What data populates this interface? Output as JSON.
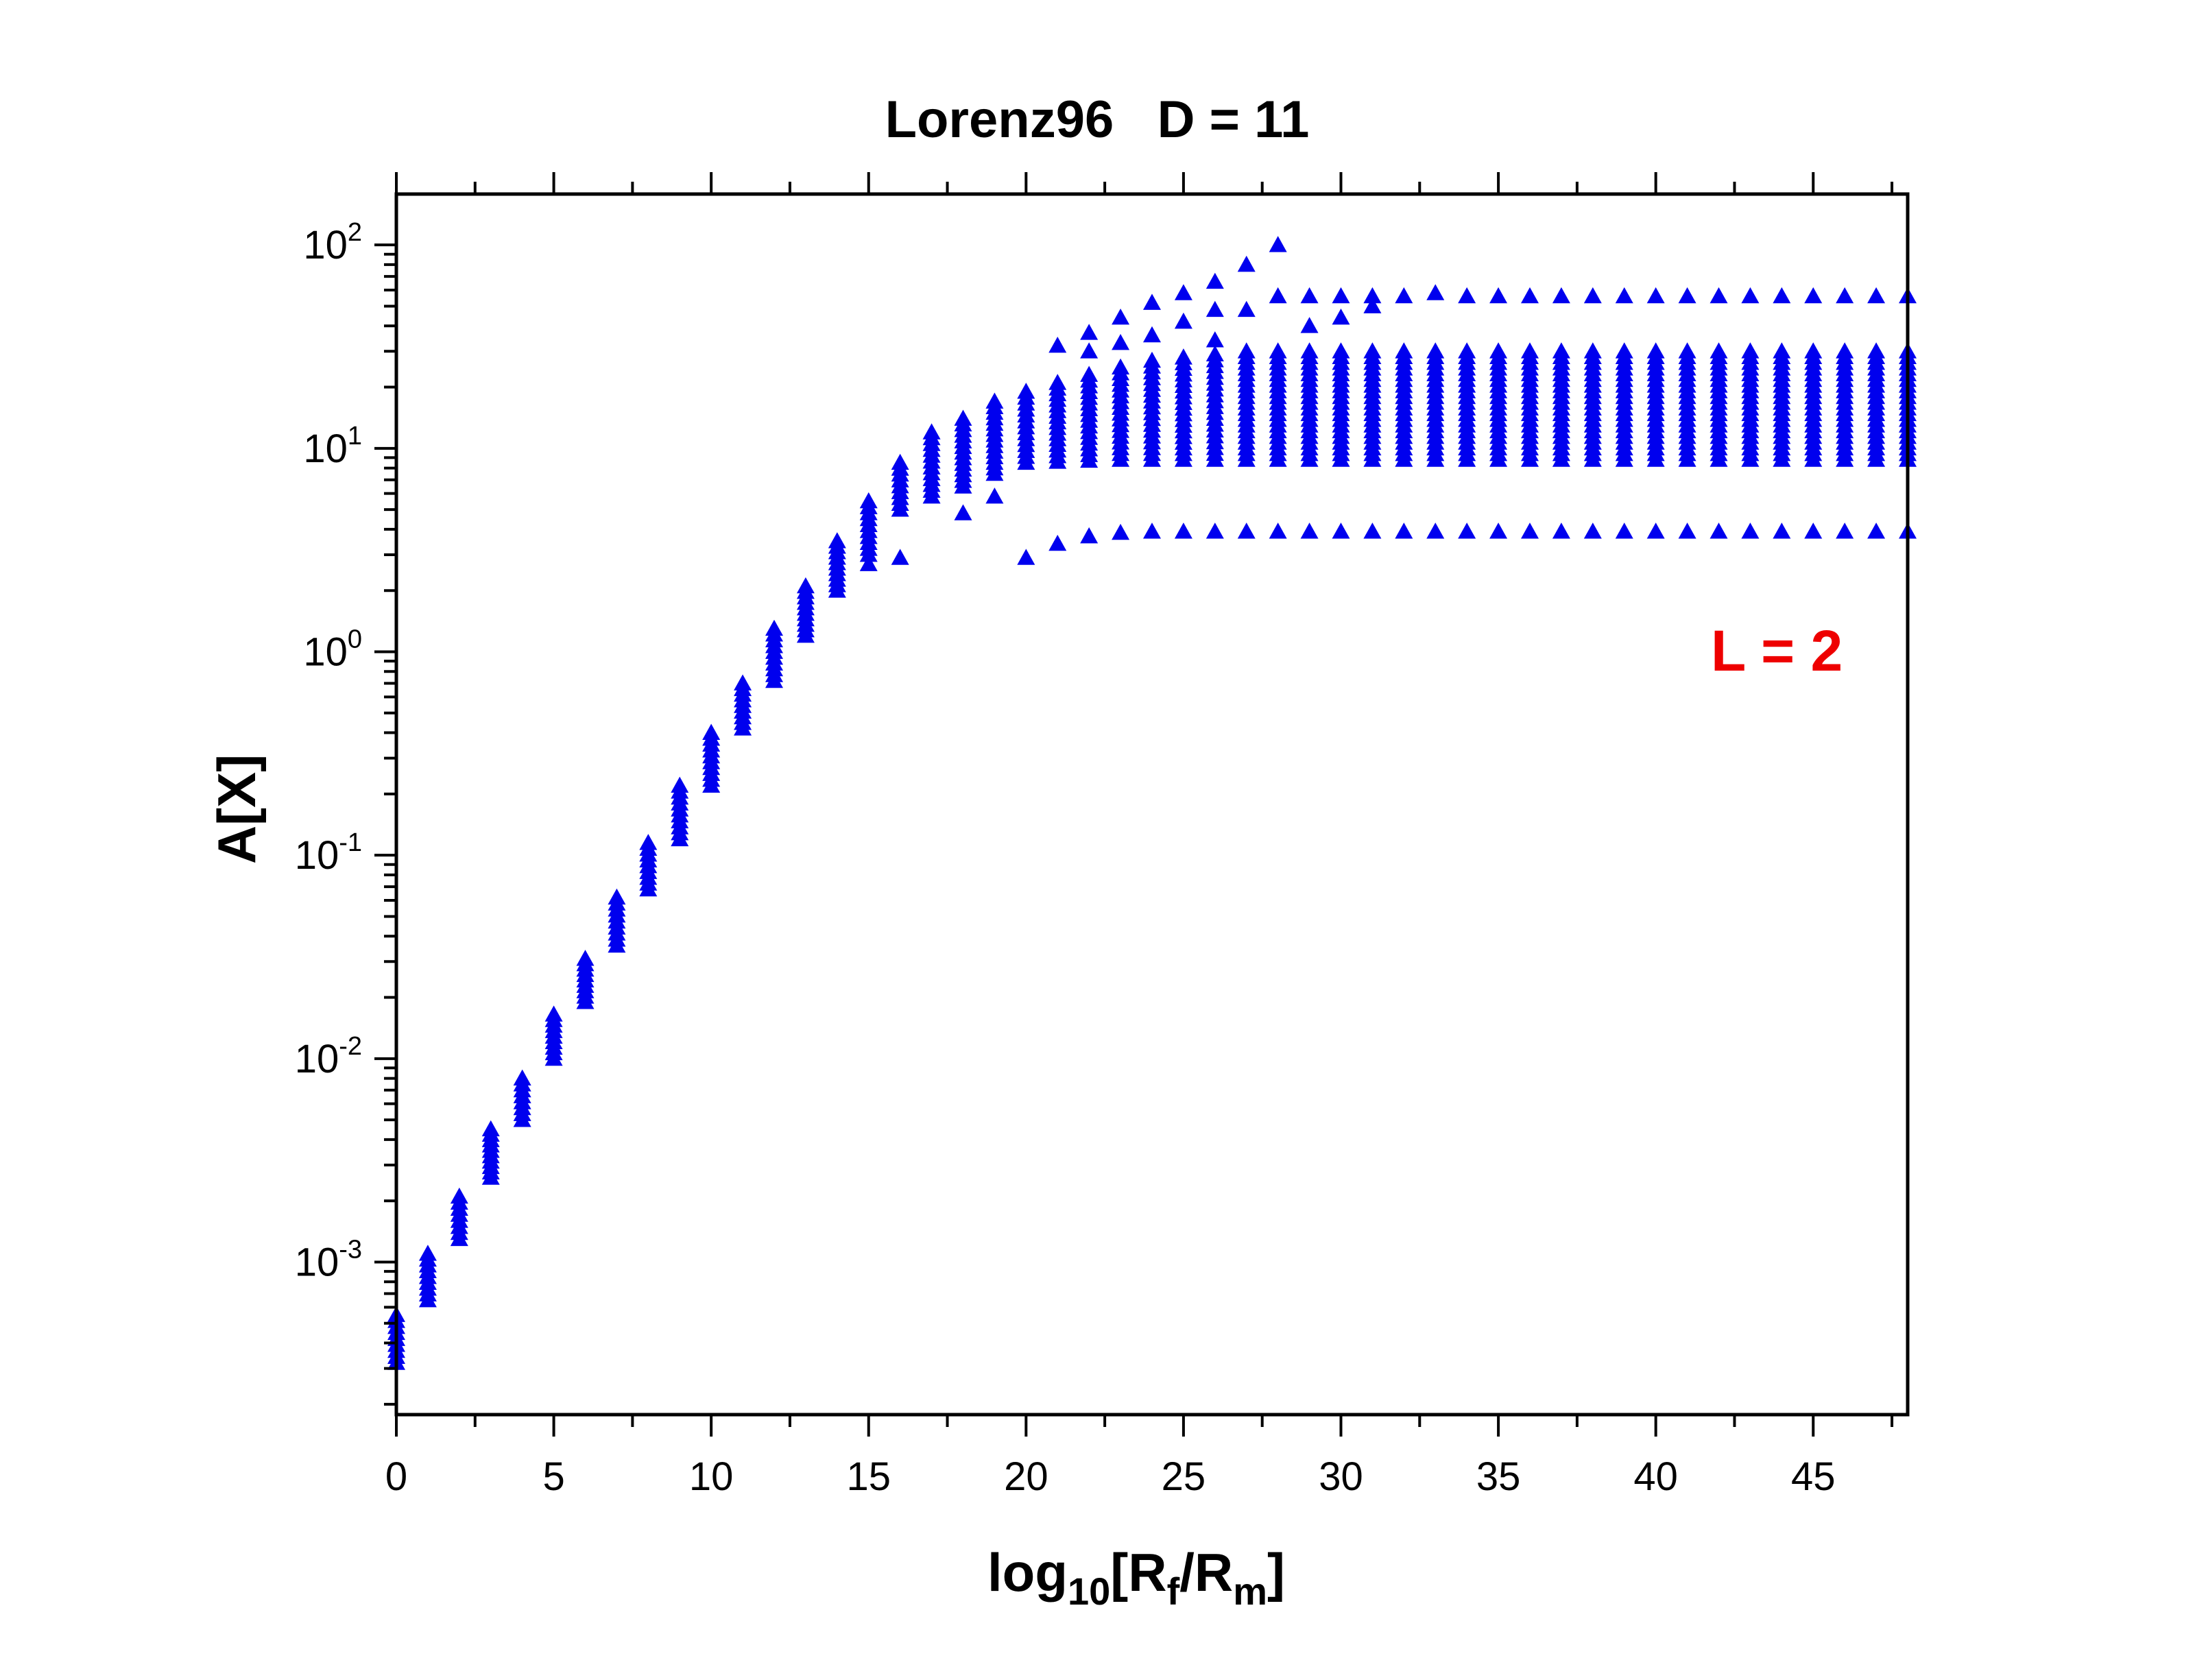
{
  "chart_data": {
    "type": "scatter",
    "title": "Lorenz96   D = 11",
    "xlabel": {
      "main": "log",
      "sub1": "10",
      "mid": "[R",
      "sub2": "f",
      "slash": "/R",
      "sub3": "m",
      "end": "]"
    },
    "ylabel": "A[X]",
    "y_scale": "log",
    "xlim": [
      0,
      48
    ],
    "ylim_log10": [
      -3.75,
      2.25
    ],
    "x_ticks": [
      0,
      5,
      10,
      15,
      20,
      25,
      30,
      35,
      40,
      45
    ],
    "x_tick_labels": [
      "0",
      "5",
      "10",
      "15",
      "20",
      "25",
      "30",
      "35",
      "40",
      "45"
    ],
    "y_ticks_log10": [
      -3,
      -2,
      -1,
      0,
      1,
      2
    ],
    "y_tick_labels": [
      {
        "base": "10",
        "exp": "-3"
      },
      {
        "base": "10",
        "exp": "-2"
      },
      {
        "base": "10",
        "exp": "-1"
      },
      {
        "base": "10",
        "exp": "0"
      },
      {
        "base": "10",
        "exp": "1"
      },
      {
        "base": "10",
        "exp": "2"
      }
    ],
    "marker": "triangle-up",
    "marker_color": "#0000ee",
    "annotation": {
      "text": "L = 2",
      "color": "#ee0000",
      "placement": "right-middle"
    },
    "series": [
      {
        "name": "A[X]",
        "x": [
          0,
          1,
          2,
          3,
          4,
          5,
          6,
          7,
          8,
          9,
          10,
          11,
          12,
          13,
          14,
          15,
          16,
          17,
          18,
          19,
          20,
          21,
          22,
          23,
          24,
          25,
          26,
          27,
          28,
          29,
          30,
          31,
          32,
          33,
          34,
          35,
          36,
          37,
          38,
          39,
          40,
          41,
          42,
          43,
          44,
          45,
          46,
          47,
          48
        ],
        "band_low": [
          0.00032,
          0.00065,
          0.0013,
          0.0026,
          0.005,
          0.01,
          0.019,
          0.036,
          0.068,
          0.12,
          0.22,
          0.42,
          0.72,
          1.2,
          2.0,
          3.0,
          5.0,
          5.8,
          6.5,
          7.5,
          8.5,
          8.6,
          8.7,
          8.8,
          8.8,
          8.8,
          8.8,
          8.8,
          8.8,
          8.8,
          8.8,
          8.8,
          8.8,
          8.8,
          8.8,
          8.8,
          8.8,
          8.8,
          8.8,
          8.8,
          8.8,
          8.8,
          8.8,
          8.8,
          8.8,
          8.8,
          8.8,
          8.8,
          8.8
        ],
        "band_high": [
          0.00055,
          0.0011,
          0.0021,
          0.0045,
          0.008,
          0.0165,
          0.031,
          0.062,
          0.115,
          0.22,
          0.4,
          0.7,
          1.3,
          2.1,
          3.5,
          5.5,
          8.5,
          12,
          14,
          17,
          19,
          21,
          23,
          25,
          27,
          28,
          29,
          30,
          30,
          30,
          30,
          30,
          30,
          30,
          30,
          30,
          30,
          30,
          30,
          30,
          30,
          30,
          30,
          30,
          30,
          30,
          30,
          30,
          30
        ],
        "outlier_low": [
          null,
          null,
          null,
          null,
          null,
          null,
          null,
          null,
          null,
          null,
          null,
          null,
          null,
          null,
          null,
          2.7,
          2.9,
          null,
          4.8,
          5.8,
          2.9,
          3.4,
          3.7,
          3.85,
          3.9,
          3.9,
          3.9,
          3.9,
          3.9,
          3.9,
          3.9,
          3.9,
          3.9,
          3.9,
          3.9,
          3.9,
          3.9,
          3.9,
          3.9,
          3.9,
          3.9,
          3.9,
          3.9,
          3.9,
          3.9,
          3.9,
          3.9,
          3.9,
          3.9
        ],
        "upper_extra": [
          [],
          [],
          [],
          [],
          [],
          [],
          [],
          [],
          [],
          [],
          [],
          [],
          [],
          [],
          [],
          [],
          [],
          [],
          [],
          [],
          [],
          [
            32
          ],
          [
            30,
            37
          ],
          [
            33,
            44
          ],
          [
            36,
            52
          ],
          [
            42,
            58
          ],
          [
            34,
            48,
            66
          ],
          [
            48,
            80
          ],
          [
            56,
            100
          ],
          [
            40,
            56
          ],
          [
            44,
            56
          ],
          [
            50,
            56
          ],
          [
            56
          ],
          [
            58
          ],
          [
            56
          ],
          [
            56
          ],
          [
            56
          ],
          [
            56
          ],
          [
            56
          ],
          [
            56
          ],
          [
            56
          ],
          [
            56
          ],
          [
            56
          ],
          [
            56
          ],
          [
            56
          ],
          [
            56
          ],
          [
            56
          ],
          [
            56
          ],
          [
            56
          ]
        ]
      }
    ]
  }
}
